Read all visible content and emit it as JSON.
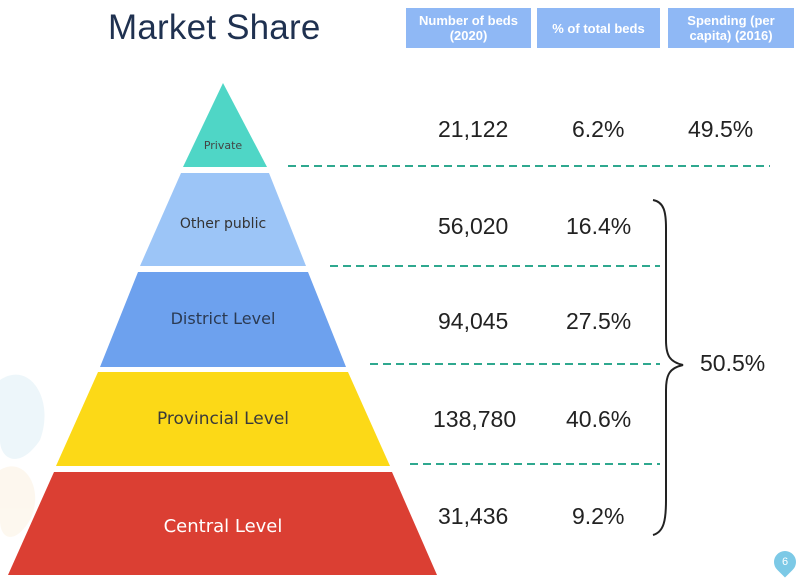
{
  "title": "Market Share",
  "headers": {
    "beds": "Number of beds (2020)",
    "pct": "% of total beds",
    "spending": "Spending (per capita) (2016)"
  },
  "tiers": [
    {
      "label": "Private",
      "beds": "21,122",
      "pct": "6.2%",
      "color": "#4fd6c6",
      "text_color": "#444444"
    },
    {
      "label": "Other public",
      "beds": "56,020",
      "pct": "16.4%",
      "color": "#9cc5f7",
      "text_color": "#333333"
    },
    {
      "label": "District Level",
      "beds": "94,045",
      "pct": "27.5%",
      "color": "#6da1ee",
      "text_color": "#2b3a52"
    },
    {
      "label": "Provincial Level",
      "beds": "138,780",
      "pct": "40.6%",
      "color": "#fcd917",
      "text_color": "#3a3a3a"
    },
    {
      "label": "Central Level",
      "beds": "31,436",
      "pct": "9.2%",
      "color": "#db3f33",
      "text_color": "#ffffff"
    }
  ],
  "spending": {
    "private": "49.5%",
    "public_total": "50.5%"
  },
  "page_number": "6",
  "colors": {
    "title": "#1f3150",
    "header_bg": "#8fb8f5",
    "divider": "#2fa88f"
  }
}
